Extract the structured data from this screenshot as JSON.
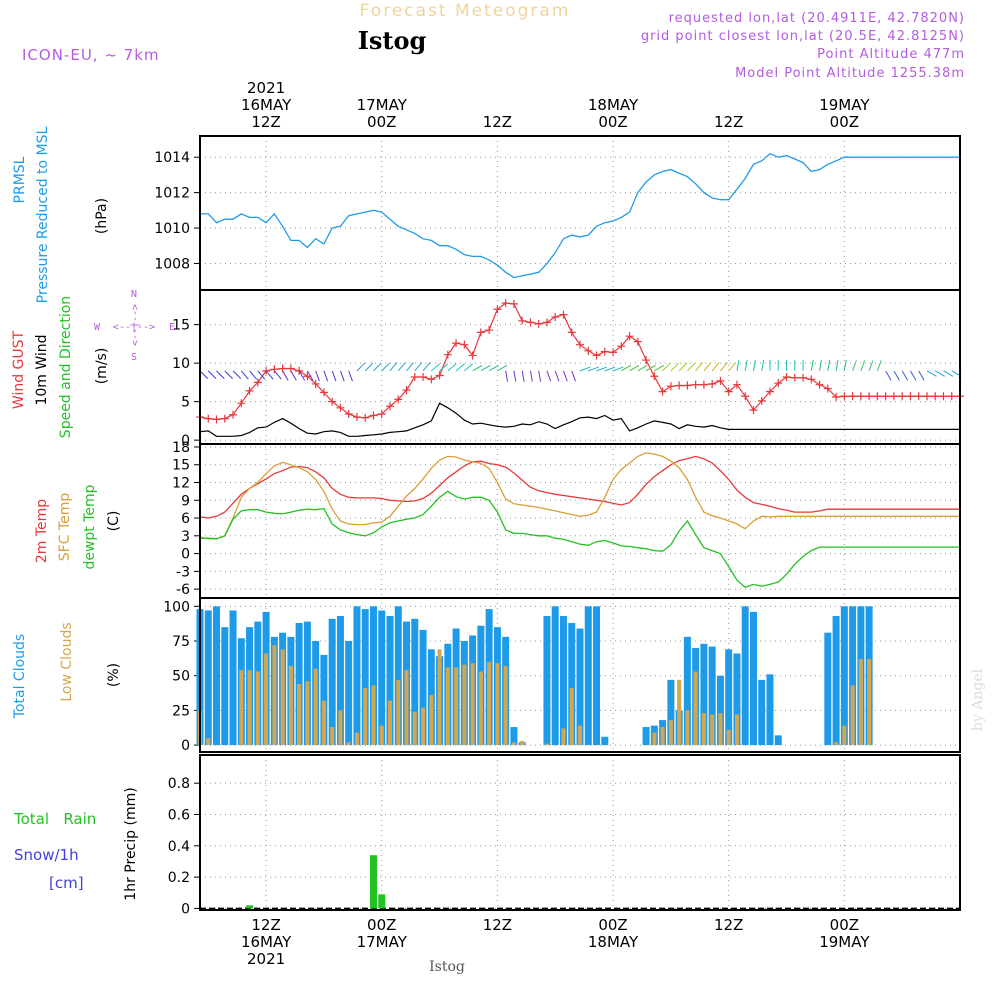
{
  "header": {
    "subtitle": "Forecast Meteogram",
    "station": "Istog",
    "model": "ICON-EU, ~ 7km",
    "requested": "requested lon,lat (20.4911E, 42.7820N)",
    "gridpoint": "grid point closest lon,lat (20.5E, 42.8125N)",
    "point_alt": "Point Altitude 477m",
    "model_alt": "Model Point Altitude 1255.38m",
    "footer_station": "Istog",
    "watermark": "by Angel"
  },
  "time_axis": {
    "t_start": -8,
    "t_end": 84,
    "top_labels": [
      {
        "t": 0,
        "lines": [
          "2021",
          "16MAY",
          "12Z"
        ]
      },
      {
        "t": 14,
        "lines": [
          "17MAY",
          "00Z"
        ]
      },
      {
        "t": 28,
        "lines": [
          "12Z"
        ]
      },
      {
        "t": 42,
        "lines": [
          "18MAY",
          "00Z"
        ]
      },
      {
        "t": 56,
        "lines": [
          "12Z"
        ]
      },
      {
        "t": 70,
        "lines": [
          "19MAY",
          "00Z"
        ]
      }
    ],
    "bottom_labels": [
      {
        "t": 0,
        "lines": [
          "12Z",
          "16MAY",
          "2021"
        ]
      },
      {
        "t": 14,
        "lines": [
          "00Z",
          "17MAY"
        ]
      },
      {
        "t": 28,
        "lines": [
          "12Z"
        ]
      },
      {
        "t": 42,
        "lines": [
          "00Z",
          "18MAY"
        ]
      },
      {
        "t": 56,
        "lines": [
          "12Z"
        ]
      },
      {
        "t": 70,
        "lines": [
          "00Z",
          "19MAY"
        ]
      }
    ]
  },
  "chart_data": [
    {
      "type": "line",
      "name": "pressure",
      "labels": {
        "title1": "PRMSL",
        "title2": "Pressure Reduced to MSL",
        "unit": "(hPa)"
      },
      "y_ticks": [
        1008,
        1010,
        1012,
        1014
      ],
      "ylim": [
        1006.5,
        1015.2
      ],
      "colors": {
        "prmsl": "#1E9BE8"
      },
      "x": [
        -8,
        -7,
        -6,
        -5,
        -4,
        -3,
        -2,
        -1,
        0,
        1,
        2,
        3,
        4,
        5,
        6,
        7,
        8,
        9,
        10,
        11,
        12,
        13,
        14,
        15,
        16,
        17,
        18,
        19,
        20,
        21,
        22,
        23,
        24,
        25,
        26,
        27,
        28,
        29,
        30,
        31,
        32,
        33,
        34,
        35,
        36,
        37,
        38,
        39,
        40,
        41,
        42,
        43,
        44,
        45,
        46,
        47,
        48,
        49,
        50,
        51,
        52,
        53,
        54,
        55,
        56,
        57,
        58,
        59,
        60,
        61,
        62,
        63,
        64,
        65,
        66,
        67,
        68,
        69,
        70,
        71,
        72,
        73,
        74,
        75,
        76,
        77,
        78,
        79,
        80,
        81,
        82,
        83,
        84
      ],
      "values": [
        1010.8,
        1010.8,
        1010.3,
        1010.5,
        1010.5,
        1010.8,
        1010.6,
        1010.6,
        1010.3,
        1010.8,
        1010.1,
        1009.3,
        1009.3,
        1008.9,
        1009.4,
        1009.1,
        1010.0,
        1010.1,
        1010.7,
        1010.8,
        1010.9,
        1011.0,
        1010.9,
        1010.5,
        1010.1,
        1009.9,
        1009.7,
        1009.4,
        1009.3,
        1009.0,
        1009.0,
        1008.8,
        1008.5,
        1008.4,
        1008.4,
        1008.2,
        1007.9,
        1007.5,
        1007.2,
        1007.3,
        1007.4,
        1007.5,
        1008.0,
        1008.6,
        1009.4,
        1009.6,
        1009.5,
        1009.6,
        1010.1,
        1010.3,
        1010.4,
        1010.6,
        1010.9,
        1012.0,
        1012.6,
        1013.0,
        1013.2,
        1013.3,
        1013.1,
        1012.9,
        1012.5,
        1012.0,
        1011.7,
        1011.6,
        1011.6,
        1012.2,
        1012.8,
        1013.6,
        1013.8,
        1014.2,
        1014.0,
        1014.1,
        1013.9,
        1013.7,
        1013.2,
        1013.3,
        1013.6,
        1013.8,
        1014.0,
        1014.0,
        1014.0,
        1014.0,
        1014.0,
        1014.0,
        1014.0,
        1014.0,
        1014.0,
        1014.0,
        1014.0,
        1014.0,
        1014.0,
        1014.0,
        1014.0
      ]
    },
    {
      "type": "line",
      "name": "wind",
      "labels": {
        "title_gust": "Wind GUST",
        "title_wind": "10m Wind",
        "title_dir": "Speed and Direction",
        "unit": "(m/s)",
        "compass_n": "N",
        "compass_s": "S",
        "compass_w": "W",
        "compass_e": "E",
        "compass_bar": "<--|-->"
      },
      "y_ticks": [
        0,
        5,
        10,
        15
      ],
      "ylim": [
        -0.5,
        19.5
      ],
      "colors": {
        "gust": "#E8383B",
        "wind": "#000000"
      },
      "x": [
        -8,
        -7,
        -6,
        -5,
        -4,
        -3,
        -2,
        -1,
        0,
        1,
        2,
        3,
        4,
        5,
        6,
        7,
        8,
        9,
        10,
        11,
        12,
        13,
        14,
        15,
        16,
        17,
        18,
        19,
        20,
        21,
        22,
        23,
        24,
        25,
        26,
        27,
        28,
        29,
        30,
        31,
        32,
        33,
        34,
        35,
        36,
        37,
        38,
        39,
        40,
        41,
        42,
        43,
        44,
        45,
        46,
        47,
        48,
        49,
        50,
        51,
        52,
        53,
        54,
        55,
        56,
        57,
        58,
        59,
        60,
        61,
        62,
        63,
        64,
        65,
        66,
        67,
        68,
        69,
        70,
        71,
        72,
        73,
        74,
        75,
        76,
        77,
        78,
        79,
        80,
        81,
        82,
        83,
        84
      ],
      "gust": [
        3.0,
        2.8,
        2.7,
        2.8,
        3.3,
        4.8,
        6.4,
        7.5,
        9.0,
        9.2,
        9.3,
        9.3,
        9.0,
        8.3,
        7.3,
        6.2,
        5.0,
        4.2,
        3.4,
        3.0,
        2.9,
        3.2,
        3.4,
        4.4,
        5.3,
        6.5,
        8.2,
        8.2,
        7.9,
        8.4,
        11.1,
        12.6,
        12.4,
        11.0,
        14.0,
        14.3,
        17.0,
        17.8,
        17.7,
        15.5,
        15.3,
        15.1,
        15.3,
        16.0,
        16.3,
        14.0,
        12.4,
        11.6,
        11.0,
        11.5,
        11.4,
        12.2,
        13.5,
        12.8,
        10.4,
        8.3,
        6.3,
        7.0,
        7.1,
        7.1,
        7.2,
        7.2,
        7.3,
        7.7,
        6.3,
        7.2,
        5.7,
        3.9,
        5.1,
        6.3,
        7.4,
        8.2,
        8.1,
        8.1,
        7.9,
        7.2,
        6.7,
        5.6,
        5.7,
        5.7,
        5.7,
        5.7,
        5.7,
        5.7,
        5.7,
        5.7,
        5.7,
        5.7,
        5.7,
        5.7,
        5.7,
        5.7,
        5.7
      ],
      "wind": [
        1.1,
        1.2,
        0.5,
        0.5,
        0.5,
        0.6,
        1.0,
        1.6,
        1.7,
        2.3,
        2.8,
        2.2,
        1.5,
        0.9,
        0.8,
        1.1,
        1.2,
        1.0,
        0.5,
        0.5,
        0.6,
        0.7,
        0.8,
        1.0,
        1.1,
        1.2,
        1.6,
        2.0,
        2.5,
        4.8,
        4.2,
        3.5,
        2.6,
        2.1,
        2.2,
        2.0,
        1.8,
        1.7,
        1.8,
        2.1,
        2.0,
        2.4,
        2.1,
        1.5,
        2.0,
        2.4,
        2.9,
        3.0,
        2.8,
        3.2,
        2.6,
        2.8,
        1.2,
        1.6,
        2.1,
        2.5,
        2.3,
        2.1,
        1.5,
        2.0,
        1.8,
        1.7,
        1.9,
        1.6,
        1.4,
        1.4,
        1.4,
        1.4,
        1.4,
        1.4,
        1.4,
        1.4,
        1.4,
        1.4,
        1.4,
        1.4,
        1.4,
        1.4,
        1.4,
        1.4,
        1.4,
        1.4,
        1.4,
        1.4,
        1.4,
        1.4,
        1.4,
        1.4,
        1.4,
        1.4,
        1.4,
        1.4,
        1.4
      ]
    },
    {
      "type": "line",
      "name": "temperature",
      "labels": {
        "title_t2m": "2m Temp",
        "title_sfc": "SFC Temp",
        "title_dew": "dewpt Temp",
        "unit": "(C)"
      },
      "y_ticks": [
        -6,
        -3,
        0,
        3,
        6,
        9,
        12,
        15,
        18
      ],
      "ylim": [
        -7.5,
        18.5
      ],
      "colors": {
        "t2m": "#E8383B",
        "sfc": "#D9A038",
        "dew": "#22C222"
      },
      "x": [
        -8,
        -7,
        -6,
        -5,
        -4,
        -3,
        -2,
        -1,
        0,
        1,
        2,
        3,
        4,
        5,
        6,
        7,
        8,
        9,
        10,
        11,
        12,
        13,
        14,
        15,
        16,
        17,
        18,
        19,
        20,
        21,
        22,
        23,
        24,
        25,
        26,
        27,
        28,
        29,
        30,
        31,
        32,
        33,
        34,
        35,
        36,
        37,
        38,
        39,
        40,
        41,
        42,
        43,
        44,
        45,
        46,
        47,
        48,
        49,
        50,
        51,
        52,
        53,
        54,
        55,
        56,
        57,
        58,
        59,
        60,
        61,
        62,
        63,
        64,
        65,
        66,
        67,
        68,
        69,
        70,
        71,
        72,
        73,
        74,
        75,
        76,
        77,
        78,
        79,
        80,
        81,
        82,
        83,
        84
      ],
      "t2m": [
        6.2,
        6.0,
        6.3,
        7.0,
        8.5,
        10.0,
        11.0,
        11.8,
        12.6,
        13.5,
        14.0,
        14.6,
        14.7,
        14.5,
        13.8,
        12.8,
        11.0,
        10.0,
        9.5,
        9.4,
        9.4,
        9.4,
        9.3,
        9.0,
        8.9,
        8.8,
        8.9,
        9.3,
        10.2,
        11.5,
        12.8,
        13.8,
        14.8,
        15.5,
        15.6,
        15.2,
        15.0,
        14.6,
        13.6,
        12.4,
        11.2,
        10.6,
        10.3,
        10.0,
        9.8,
        9.6,
        9.4,
        9.2,
        9.0,
        8.8,
        8.5,
        8.2,
        8.6,
        10.0,
        11.7,
        13.0,
        14.0,
        15.0,
        15.7,
        16.0,
        16.4,
        16.0,
        15.3,
        14.0,
        12.5,
        10.7,
        9.5,
        8.6,
        8.3,
        8.0,
        7.6,
        7.3,
        7.0,
        7.0,
        7.0,
        7.2,
        7.5,
        7.5,
        7.5,
        7.5,
        7.5,
        7.5,
        7.5,
        7.5,
        7.5,
        7.5,
        7.5,
        7.5,
        7.5,
        7.5,
        7.5,
        7.5,
        7.5
      ],
      "sfc": [
        2.8,
        2.5,
        2.5,
        3.0,
        6.0,
        9.5,
        11.0,
        12.0,
        13.5,
        14.8,
        15.4,
        15.0,
        14.5,
        13.8,
        12.5,
        10.5,
        7.5,
        5.5,
        5.0,
        4.9,
        4.9,
        5.2,
        5.3,
        6.3,
        8.0,
        9.7,
        11.0,
        12.6,
        14.4,
        15.8,
        16.4,
        16.3,
        15.8,
        15.5,
        15.2,
        14.4,
        12.0,
        9.2,
        8.4,
        8.2,
        8.0,
        7.8,
        7.5,
        7.2,
        6.9,
        6.6,
        6.3,
        6.5,
        7.0,
        9.5,
        12.5,
        14.2,
        15.3,
        16.4,
        17.0,
        16.8,
        16.4,
        15.6,
        14.5,
        12.5,
        9.5,
        7.0,
        6.4,
        6.0,
        5.5,
        5.0,
        4.2,
        5.5,
        6.3,
        6.2,
        6.3,
        6.3,
        6.3,
        6.3,
        6.3,
        6.3,
        6.3,
        6.3,
        6.3,
        6.3,
        6.3,
        6.3,
        6.3,
        6.3,
        6.3,
        6.3,
        6.3,
        6.3,
        6.3,
        6.3,
        6.3,
        6.3,
        6.3
      ],
      "dew": [
        2.6,
        2.6,
        2.5,
        3.0,
        5.8,
        7.2,
        7.4,
        7.4,
        7.0,
        6.8,
        6.7,
        7.0,
        7.3,
        7.5,
        7.4,
        7.6,
        5.0,
        4.0,
        3.5,
        3.2,
        3.0,
        3.5,
        4.5,
        5.2,
        5.5,
        5.8,
        6.0,
        6.6,
        8.0,
        9.5,
        10.5,
        9.6,
        9.2,
        9.5,
        9.5,
        9.0,
        7.0,
        4.0,
        3.4,
        3.4,
        3.2,
        3.0,
        3.0,
        2.6,
        2.4,
        2.0,
        1.6,
        1.4,
        2.0,
        2.2,
        1.8,
        1.3,
        1.2,
        1.0,
        0.8,
        0.5,
        0.4,
        1.5,
        3.8,
        5.5,
        3.2,
        1.0,
        0.5,
        0.0,
        -2.2,
        -4.5,
        -5.7,
        -5.2,
        -5.5,
        -5.2,
        -4.8,
        -3.5,
        -1.8,
        -0.5,
        0.5,
        1.1,
        1.1,
        1.1,
        1.1,
        1.1,
        1.1,
        1.1,
        1.1,
        1.1,
        1.1,
        1.1,
        1.1,
        1.1,
        1.1,
        1.1,
        1.1,
        1.1,
        1.1
      ]
    },
    {
      "type": "bar",
      "name": "clouds",
      "labels": {
        "title_total": "Total Clouds",
        "title_low": "Low Clouds",
        "unit": "(%)"
      },
      "y_ticks": [
        0,
        25,
        50,
        75,
        100
      ],
      "ylim": [
        -5,
        106
      ],
      "colors": {
        "total": "#1E9BE8",
        "low": "#D4A64F"
      },
      "x": [
        -8,
        -7,
        -6,
        -5,
        -4,
        -3,
        -2,
        -1,
        0,
        1,
        2,
        3,
        4,
        5,
        6,
        7,
        8,
        9,
        10,
        11,
        12,
        13,
        14,
        15,
        16,
        17,
        18,
        19,
        20,
        21,
        22,
        23,
        24,
        25,
        26,
        27,
        28,
        29,
        30,
        31,
        32,
        33,
        34,
        35,
        36,
        37,
        38,
        39,
        40,
        41,
        42,
        43,
        44,
        45,
        46,
        47,
        48,
        49,
        50,
        51,
        52,
        53,
        54,
        55,
        56,
        57,
        58,
        59,
        60,
        61,
        62,
        63,
        64,
        65,
        66,
        67,
        68,
        69,
        70,
        71,
        72,
        73,
        74,
        75,
        76,
        77,
        78,
        79,
        80,
        81,
        82,
        83,
        84
      ],
      "total": [
        98,
        97,
        100,
        85,
        97,
        77,
        85,
        89,
        96,
        78,
        81,
        78,
        88,
        89,
        75,
        65,
        91,
        93,
        75,
        100,
        98,
        100,
        97,
        93,
        100,
        89,
        91,
        83,
        69,
        64,
        73,
        84,
        75,
        79,
        86,
        98,
        85,
        78,
        13,
        2,
        0,
        0,
        93,
        100,
        93,
        88,
        84,
        100,
        100,
        6,
        0,
        0,
        0,
        0,
        13,
        14,
        18,
        47,
        25,
        78,
        70,
        73,
        71,
        50,
        69,
        66,
        100,
        96,
        47,
        51,
        7,
        0,
        0,
        0,
        0,
        0,
        81,
        93,
        100,
        100,
        100,
        100,
        0,
        0,
        0,
        0,
        0,
        0,
        0,
        0,
        0,
        0,
        0
      ],
      "low": [
        25,
        5,
        0,
        0,
        0,
        54,
        54,
        53,
        66,
        72,
        69,
        57,
        44,
        46,
        55,
        32,
        13,
        25,
        2,
        9,
        41,
        43,
        14,
        32,
        47,
        54,
        24,
        27,
        36,
        69,
        56,
        56,
        58,
        59,
        53,
        60,
        59,
        57,
        2,
        3,
        0,
        0,
        1,
        0,
        12,
        41,
        14,
        0,
        0,
        0,
        0,
        0,
        0,
        0,
        0,
        9,
        13,
        18,
        47,
        25,
        53,
        23,
        22,
        23,
        11,
        22,
        0,
        0,
        0,
        0,
        0,
        0,
        0,
        0,
        0,
        0,
        0,
        2,
        14,
        43,
        62,
        62,
        0,
        0,
        0,
        0,
        0,
        0,
        0,
        0,
        0,
        0,
        0
      ]
    },
    {
      "type": "bar",
      "name": "precipitation",
      "labels": {
        "title_rain": "Total   Rain",
        "title_snow": "Snow/1h",
        "title_snowunit": "[cm]",
        "unit": "1hr Precip (mm)"
      },
      "y_ticks": [
        0,
        0.2,
        0.4,
        0.6,
        0.8
      ],
      "y_tick_labels": [
        "0",
        "0.2",
        "0.4",
        "0.6",
        "0.8"
      ],
      "ylim": [
        -0.01,
        0.98
      ],
      "colors": {
        "rain": "#22C222",
        "snow": "#4141DE"
      },
      "x": [
        -2,
        13,
        14,
        16,
        17,
        18,
        19,
        20
      ],
      "values": [
        0.02,
        0.34,
        0.09,
        0.0,
        0.0,
        0.0,
        0.0,
        0.0
      ]
    }
  ]
}
